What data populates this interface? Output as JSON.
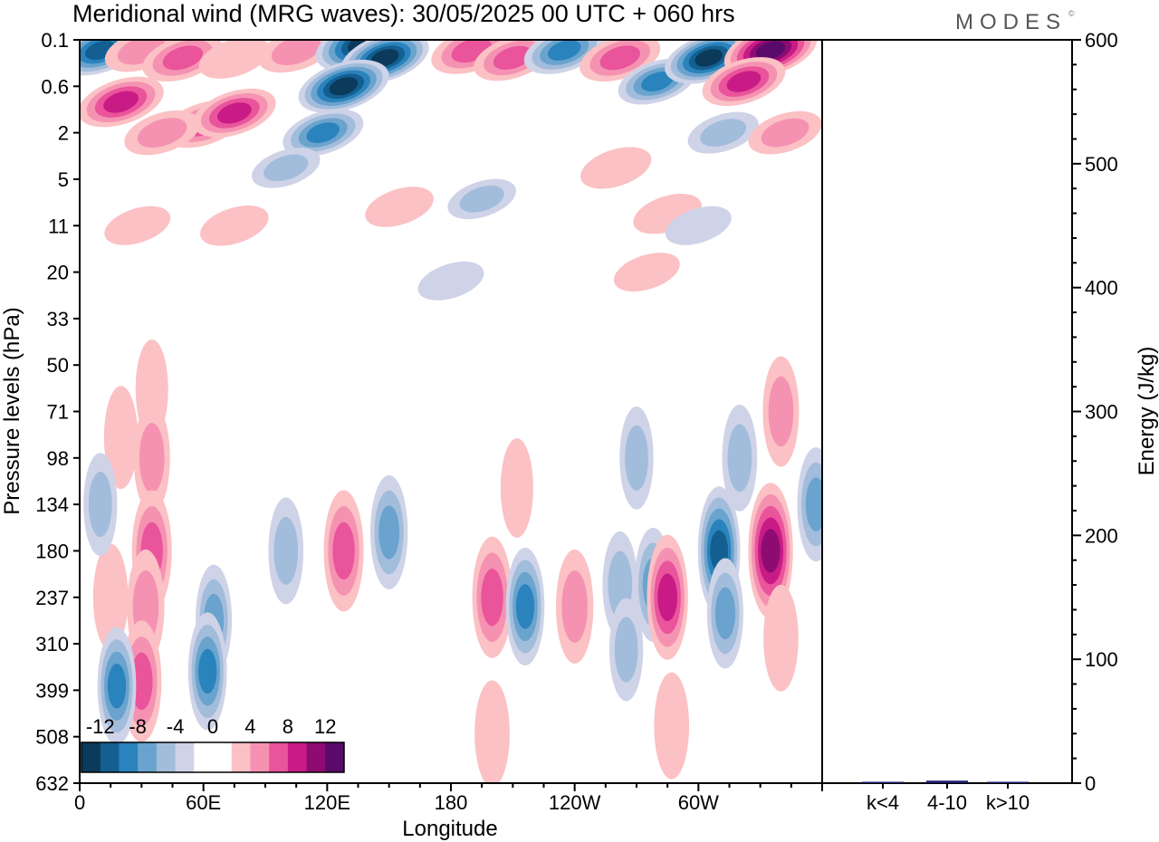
{
  "header": {
    "title": "Meridional wind (MRG waves):  30/05/2025  00 UTC  + 060 hrs",
    "logo": "MODES",
    "logo_mark": "©"
  },
  "chart_data": [
    {
      "type": "heatmap",
      "title": "Meridional wind (MRG waves):  30/05/2025  00 UTC  + 060 hrs",
      "xlabel": "Longitude",
      "ylabel": "Pressure levels (hPa)",
      "x_ticks": [
        "0",
        "60E",
        "120E",
        "180",
        "120W",
        "60W"
      ],
      "x_tick_lon": [
        0,
        60,
        120,
        180,
        240,
        300
      ],
      "xlim": [
        0,
        360
      ],
      "y_ticks": [
        "0.1",
        "0.6",
        "2",
        "5",
        "11",
        "20",
        "33",
        "50",
        "71",
        "98",
        "134",
        "180",
        "237",
        "310",
        "399",
        "508",
        "632"
      ],
      "y_scale": "categorical levels, top = 0.1 hPa, bottom = 632 hPa",
      "colorbar": {
        "labels": [
          "-12",
          "-8",
          "-4",
          "0",
          "4",
          "8",
          "12"
        ],
        "levels": [
          -14,
          -12,
          -10,
          -8,
          -6,
          -4,
          -2,
          2,
          4,
          6,
          8,
          10,
          12,
          14
        ],
        "colors": [
          "#0b3a5a",
          "#135f91",
          "#2a83bd",
          "#6aa3cd",
          "#a2bddb",
          "#cfd3e8",
          "#ffffff",
          "#ffffff",
          "#fbc1c4",
          "#f592b2",
          "#e9549b",
          "#c81b86",
          "#8e0c72",
          "#5a0a6b"
        ]
      },
      "features": [
        {
          "lon": 10,
          "p": 0.15,
          "v": -11
        },
        {
          "lon": 30,
          "p": 0.15,
          "v": 6
        },
        {
          "lon": 50,
          "p": 0.2,
          "v": 9
        },
        {
          "lon": 75,
          "p": 0.2,
          "v": 5
        },
        {
          "lon": 105,
          "p": 0.15,
          "v": 7
        },
        {
          "lon": 137,
          "p": 0.12,
          "v": -14
        },
        {
          "lon": 148,
          "p": 0.2,
          "v": -12
        },
        {
          "lon": 128,
          "p": 0.6,
          "v": -13
        },
        {
          "lon": 118,
          "p": 2,
          "v": -9
        },
        {
          "lon": 100,
          "p": 4,
          "v": -4
        },
        {
          "lon": 190,
          "p": 0.15,
          "v": 9
        },
        {
          "lon": 210,
          "p": 0.2,
          "v": 8
        },
        {
          "lon": 235,
          "p": 0.15,
          "v": -9
        },
        {
          "lon": 262,
          "p": 0.2,
          "v": 9
        },
        {
          "lon": 280,
          "p": 0.5,
          "v": -8
        },
        {
          "lon": 305,
          "p": 0.2,
          "v": -12
        },
        {
          "lon": 335,
          "p": 0.15,
          "v": 14
        },
        {
          "lon": 322,
          "p": 0.5,
          "v": 10
        },
        {
          "lon": 20,
          "p": 0.9,
          "v": 11
        },
        {
          "lon": 60,
          "p": 1.6,
          "v": 9
        },
        {
          "lon": 75,
          "p": 1.2,
          "v": 10
        },
        {
          "lon": 40,
          "p": 2,
          "v": 7
        },
        {
          "lon": 260,
          "p": 4,
          "v": 5
        },
        {
          "lon": 312,
          "p": 2,
          "v": -5
        },
        {
          "lon": 342,
          "p": 2,
          "v": 6
        },
        {
          "lon": 195,
          "p": 7,
          "v": -4
        },
        {
          "lon": 155,
          "p": 8,
          "v": 4
        },
        {
          "lon": 285,
          "p": 9,
          "v": 4
        },
        {
          "lon": 300,
          "p": 11,
          "v": -3
        },
        {
          "lon": 75,
          "p": 11,
          "v": 4
        },
        {
          "lon": 28,
          "p": 11,
          "v": 3
        },
        {
          "lon": 275,
          "p": 20,
          "v": 3
        },
        {
          "lon": 180,
          "p": 22,
          "v": -3
        },
        {
          "lon": 35,
          "p": 60,
          "v": 3
        },
        {
          "lon": 20,
          "p": 85,
          "v": 4
        },
        {
          "lon": 35,
          "p": 98,
          "v": 6
        },
        {
          "lon": 340,
          "p": 71,
          "v": 6
        },
        {
          "lon": 320,
          "p": 98,
          "v": -5
        },
        {
          "lon": 357,
          "p": 134,
          "v": -7
        },
        {
          "lon": 35,
          "p": 180,
          "v": 9
        },
        {
          "lon": 32,
          "p": 250,
          "v": 7
        },
        {
          "lon": 30,
          "p": 380,
          "v": 9
        },
        {
          "lon": 15,
          "p": 237,
          "v": 5
        },
        {
          "lon": 18,
          "p": 390,
          "v": -8
        },
        {
          "lon": 65,
          "p": 270,
          "v": -6
        },
        {
          "lon": 62,
          "p": 360,
          "v": -8
        },
        {
          "lon": 100,
          "p": 180,
          "v": -5
        },
        {
          "lon": 128,
          "p": 180,
          "v": 9
        },
        {
          "lon": 150,
          "p": 160,
          "v": -7
        },
        {
          "lon": 200,
          "p": 237,
          "v": 9
        },
        {
          "lon": 212,
          "p": 120,
          "v": 3
        },
        {
          "lon": 216,
          "p": 250,
          "v": -8
        },
        {
          "lon": 240,
          "p": 250,
          "v": 7
        },
        {
          "lon": 262,
          "p": 220,
          "v": -5
        },
        {
          "lon": 265,
          "p": 320,
          "v": -4
        },
        {
          "lon": 278,
          "p": 220,
          "v": -7
        },
        {
          "lon": 285,
          "p": 237,
          "v": 10
        },
        {
          "lon": 310,
          "p": 180,
          "v": -11
        },
        {
          "lon": 313,
          "p": 260,
          "v": -6
        },
        {
          "lon": 335,
          "p": 180,
          "v": 13
        },
        {
          "lon": 340,
          "p": 300,
          "v": 5
        },
        {
          "lon": 287,
          "p": 480,
          "v": 5
        },
        {
          "lon": 200,
          "p": 500,
          "v": 5
        },
        {
          "lon": 10,
          "p": 134,
          "v": -4
        },
        {
          "lon": 270,
          "p": 98,
          "v": -4
        }
      ]
    },
    {
      "type": "bar",
      "ylabel": "Energy (J/kg)",
      "categories": [
        "k<4",
        "4-10",
        "k>10"
      ],
      "values": [
        0.5,
        2,
        0.5
      ],
      "ylim": [
        0,
        600
      ],
      "y_ticks": [
        "0",
        "100",
        "200",
        "300",
        "400",
        "500",
        "600"
      ],
      "bar_color": "#1a1a6b"
    }
  ]
}
